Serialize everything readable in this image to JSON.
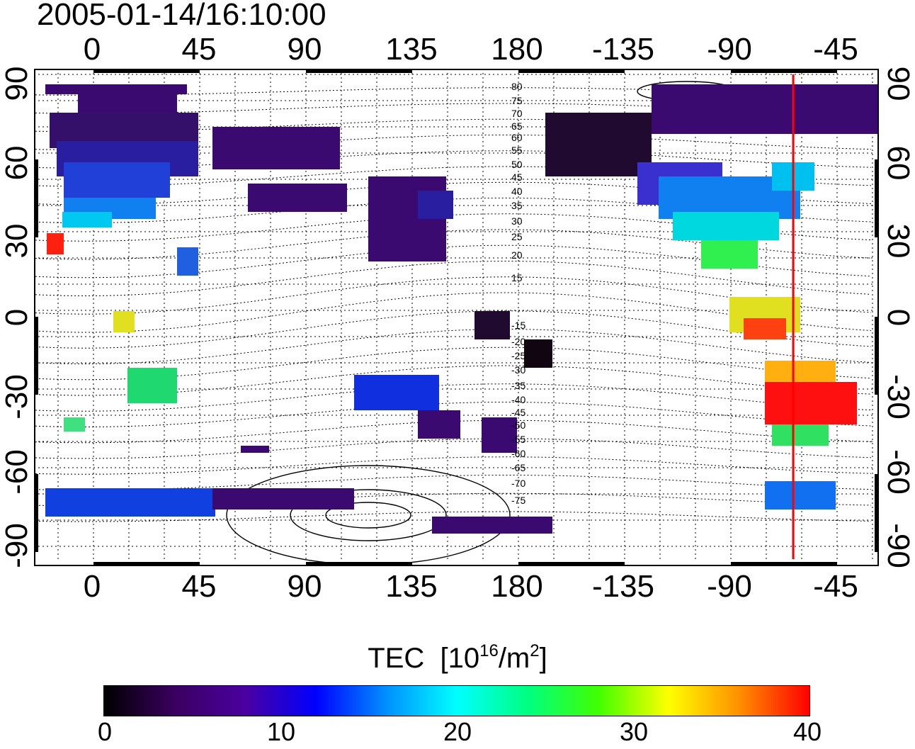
{
  "title": "2005-01-14/16:10:00",
  "colorbar": {
    "label_main": "TEC",
    "label_open": "[10",
    "label_exp1": "16",
    "label_mid": "/m",
    "label_exp2": "2",
    "label_close": "]",
    "ticks": [
      "0",
      "10",
      "20",
      "30",
      "40"
    ],
    "colors": [
      "#000000",
      "#3a0060",
      "#4a00a0",
      "#0000ff",
      "#0090ff",
      "#00ffff",
      "#00ff80",
      "#40ff00",
      "#ffff00",
      "#ff9000",
      "#ff0000"
    ]
  },
  "map": {
    "x_tick_labels": [
      "0",
      "45",
      "90",
      "135",
      "180",
      "-135",
      "-90",
      "-45"
    ],
    "y_tick_labels": [
      "90",
      "60",
      "30",
      "0",
      "-30",
      "-60",
      "-90"
    ],
    "contour_labels": [
      "80",
      "75",
      "70",
      "65",
      "60",
      "55",
      "50",
      "45",
      "40",
      "35",
      "30",
      "25",
      "20",
      "15",
      "-15",
      "-20",
      "-25",
      "-30",
      "-35",
      "-40",
      "-45",
      "-50",
      "-55",
      "-60",
      "-65",
      "-70",
      "-75"
    ],
    "marker_line_color": "#ff0000"
  }
}
